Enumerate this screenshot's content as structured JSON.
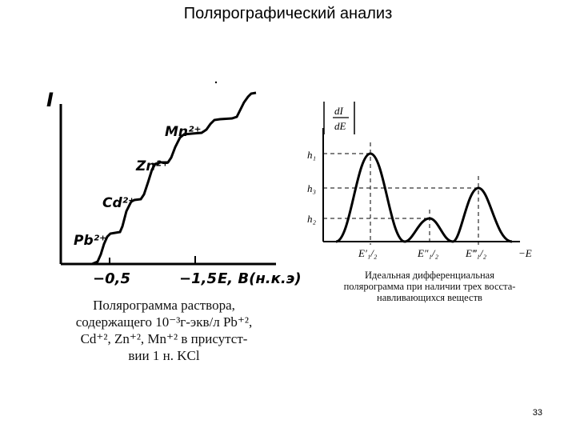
{
  "title": "Полярографический анализ",
  "left_figure": {
    "y_axis_label": "I",
    "x_axis_label": "E, B(н.к.э)",
    "ticks": [
      "−0,5",
      "−1,5"
    ],
    "waves": [
      "Pb²⁺",
      "Cd²⁺",
      "Zn²⁺",
      "Mn²⁺"
    ],
    "caption_lines": [
      "Полярограмма раствора,",
      "содержащего 10⁻³г-экв/л Pb⁺²,",
      "Cd⁺², Zn⁺², Mn⁺² в присутст-",
      "вии 1 н. KCl"
    ]
  },
  "right_figure": {
    "y_axis_label_num": "dI",
    "y_axis_label_den": "dE",
    "level_labels": [
      "h₁",
      "h₃",
      "h₂"
    ],
    "x_labels": [
      "E′₁/₂",
      "E″₁/₂",
      "E‴₁/₂"
    ],
    "x_axis_label": "−E",
    "caption_lines": [
      "Идеальная дифференциальная",
      "полярограмма при наличии трех восста-",
      "навливающихся веществ"
    ]
  },
  "page_number": "33"
}
